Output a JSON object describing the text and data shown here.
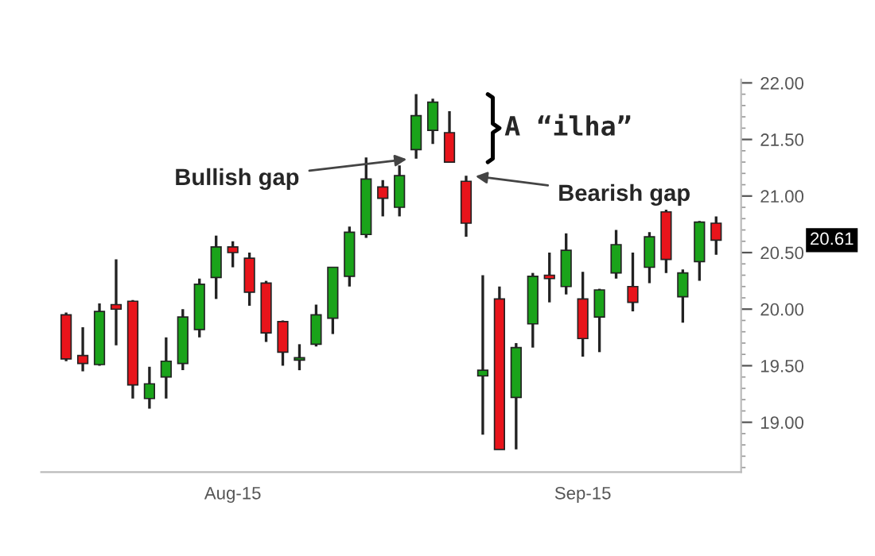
{
  "chart_data": {
    "type": "candlestick",
    "categories": [
      null,
      null,
      null,
      null,
      null,
      null,
      null,
      null,
      null,
      null,
      "Aug-15",
      null,
      null,
      null,
      null,
      null,
      null,
      null,
      null,
      null,
      null,
      null,
      null,
      null,
      null,
      null,
      null,
      null,
      null,
      null,
      null,
      "Sep-15",
      null,
      null,
      null,
      null,
      null,
      null,
      null,
      null
    ],
    "ohlc": [
      [
        19.95,
        19.97,
        19.54,
        19.56
      ],
      [
        19.59,
        19.84,
        19.45,
        19.52
      ],
      [
        19.51,
        20.05,
        19.5,
        19.98
      ],
      [
        20.04,
        20.44,
        19.68,
        20.0
      ],
      [
        20.07,
        20.08,
        19.21,
        19.33
      ],
      [
        19.21,
        19.49,
        19.12,
        19.34
      ],
      [
        19.4,
        19.75,
        19.21,
        19.54
      ],
      [
        19.52,
        20.0,
        19.46,
        19.93
      ],
      [
        19.82,
        20.27,
        19.75,
        20.22
      ],
      [
        20.28,
        20.65,
        20.09,
        20.55
      ],
      [
        20.55,
        20.6,
        20.37,
        20.5
      ],
      [
        20.45,
        20.5,
        20.03,
        20.15
      ],
      [
        20.23,
        20.25,
        19.71,
        19.79
      ],
      [
        19.89,
        19.9,
        19.5,
        19.62
      ],
      [
        19.55,
        19.69,
        19.46,
        19.57
      ],
      [
        19.69,
        20.04,
        19.67,
        19.95
      ],
      [
        19.92,
        20.37,
        19.78,
        20.37
      ],
      [
        20.29,
        20.73,
        20.2,
        20.68
      ],
      [
        20.66,
        21.34,
        20.63,
        21.15
      ],
      [
        21.08,
        21.14,
        20.82,
        20.98
      ],
      [
        20.9,
        21.27,
        20.82,
        21.18
      ],
      [
        21.41,
        21.9,
        21.33,
        21.71
      ],
      [
        21.58,
        21.86,
        21.46,
        21.83
      ],
      [
        21.56,
        21.75,
        21.3,
        21.3
      ],
      [
        21.13,
        21.18,
        20.64,
        20.76
      ],
      [
        19.41,
        20.3,
        18.89,
        19.46
      ],
      [
        20.09,
        20.2,
        18.76,
        18.76
      ],
      [
        19.22,
        19.7,
        18.76,
        19.66
      ],
      [
        19.87,
        20.32,
        19.66,
        20.29
      ],
      [
        20.3,
        20.5,
        20.06,
        20.27
      ],
      [
        20.2,
        20.67,
        20.13,
        20.52
      ],
      [
        20.09,
        20.33,
        19.58,
        19.74
      ],
      [
        19.93,
        20.18,
        19.62,
        20.17
      ],
      [
        20.32,
        20.7,
        20.27,
        20.57
      ],
      [
        20.2,
        20.5,
        19.98,
        20.06
      ],
      [
        20.37,
        20.68,
        20.23,
        20.64
      ],
      [
        20.86,
        20.88,
        20.32,
        20.44
      ],
      [
        20.11,
        20.35,
        19.88,
        20.32
      ],
      [
        20.42,
        20.78,
        20.25,
        20.77
      ],
      [
        20.76,
        20.82,
        20.48,
        20.61
      ]
    ],
    "colors": [
      "#e8141b",
      "#e8141b",
      "#1aa31a",
      "#e8141b",
      "#e8141b",
      "#1aa31a",
      "#1aa31a",
      "#1aa31a",
      "#1aa31a",
      "#1aa31a",
      "#e8141b",
      "#e8141b",
      "#e8141b",
      "#e8141b",
      "#1aa31a",
      "#1aa31a",
      "#1aa31a",
      "#1aa31a",
      "#1aa31a",
      "#e8141b",
      "#1aa31a",
      "#1aa31a",
      "#1aa31a",
      "#e8141b",
      "#e8141b",
      "#1aa31a",
      "#e8141b",
      "#1aa31a",
      "#1aa31a",
      "#e8141b",
      "#1aa31a",
      "#e8141b",
      "#1aa31a",
      "#1aa31a",
      "#e8141b",
      "#1aa31a",
      "#e8141b",
      "#1aa31a",
      "#1aa31a",
      "#e8141b"
    ],
    "ylim": [
      18.56,
      22.03
    ],
    "yticks": [
      {
        "value": 19.0,
        "label": "19.00"
      },
      {
        "value": 19.5,
        "label": "19.50"
      },
      {
        "value": 20.0,
        "label": "20.00"
      },
      {
        "value": 20.5,
        "label": "20.50"
      },
      {
        "value": 21.0,
        "label": "21.00"
      },
      {
        "value": 21.5,
        "label": "21.50"
      },
      {
        "value": 22.0,
        "label": "22.00"
      }
    ],
    "annotations": [
      "Bullish gap",
      "Bearish gap",
      "A “ilha”",
      "20.61"
    ],
    "grid": false
  }
}
